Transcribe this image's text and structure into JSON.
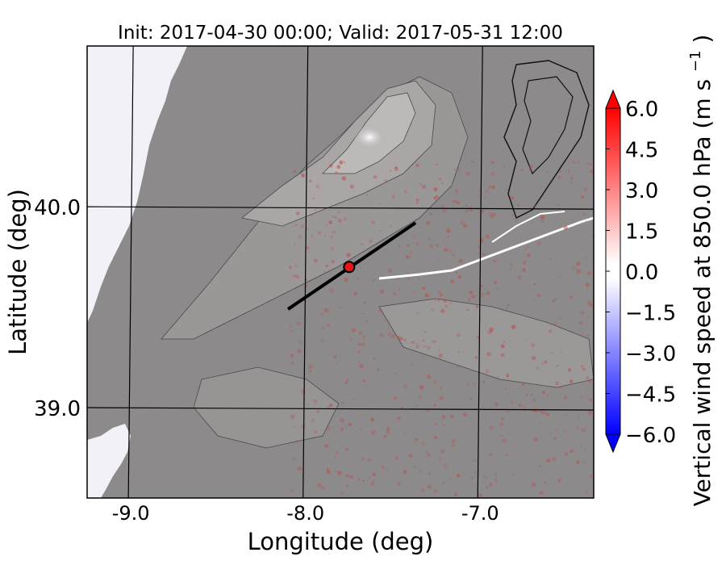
{
  "chart_data": {
    "type": "heatmap",
    "title": "Init: 2017-04-30 00:00; Valid: 2017-05-31 12:00",
    "xlabel": "Longitude (deg)",
    "ylabel": "Latitude (deg)",
    "xlim": [
      -9.25,
      -6.35
    ],
    "ylim": [
      38.55,
      40.8
    ],
    "x_ticks": [
      {
        "value": -9.0,
        "label": "-9.0"
      },
      {
        "value": -8.0,
        "label": "-8.0"
      },
      {
        "value": -7.0,
        "label": "-7.0"
      }
    ],
    "y_ticks": [
      {
        "value": 40.0,
        "label": "40.0"
      },
      {
        "value": 39.0,
        "label": "39.0"
      }
    ],
    "gridlines": true,
    "colorbar": {
      "label": "Vertical wind speed at 850.0 hPa (m s",
      "label_superscript": "−1",
      "label_suffix": ")",
      "min": -6.0,
      "max": 6.0,
      "extend": "both",
      "ticks": [
        {
          "value": 6.0,
          "label": "6.0"
        },
        {
          "value": 4.5,
          "label": "4.5"
        },
        {
          "value": 3.0,
          "label": "3.0"
        },
        {
          "value": 1.5,
          "label": "1.5"
        },
        {
          "value": 0.0,
          "label": "0.0"
        },
        {
          "value": -1.5,
          "label": "−1.5"
        },
        {
          "value": -3.0,
          "label": "−3.0"
        },
        {
          "value": -4.5,
          "label": "−4.5"
        },
        {
          "value": -6.0,
          "label": "−6.0"
        }
      ],
      "colors": {
        "positive": "#ff0000",
        "zero": "#ffffff",
        "negative": "#0000ff"
      }
    },
    "cross_section": {
      "start": [
        -8.1,
        39.49
      ],
      "end": [
        -7.37,
        39.92
      ]
    },
    "marker": {
      "lon": -7.75,
      "lat": 39.7,
      "color": "#e8141a"
    }
  }
}
